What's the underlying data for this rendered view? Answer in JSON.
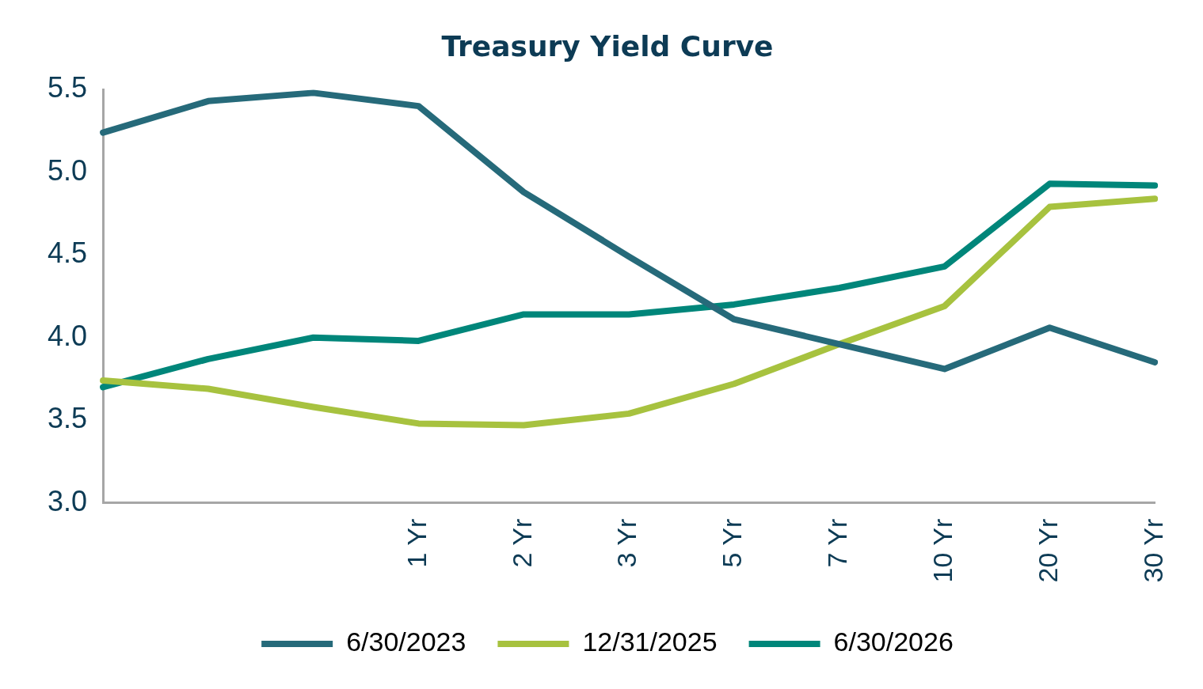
{
  "chart_data": {
    "type": "line",
    "title": "Treasury Yield Curve",
    "categories": [
      null,
      null,
      null,
      "1 Yr",
      "2 Yr",
      "3 Yr",
      "5 Yr",
      "7 Yr",
      "10 Yr",
      "20 Yr",
      "30 Yr"
    ],
    "series": [
      {
        "name": "6/30/2023",
        "color": "#266a7a",
        "values": [
          5.24,
          5.43,
          5.48,
          5.4,
          4.88,
          4.49,
          4.11,
          3.96,
          3.81,
          4.06,
          3.85
        ]
      },
      {
        "name": "12/31/2025",
        "color": "#a7c23f",
        "values": [
          3.74,
          3.69,
          3.58,
          3.48,
          3.47,
          3.54,
          3.72,
          3.96,
          4.19,
          4.79,
          4.84
        ]
      },
      {
        "name": "6/30/2026",
        "color": "#00867a",
        "values": [
          3.7,
          3.87,
          4.0,
          3.98,
          4.14,
          4.14,
          4.2,
          4.3,
          4.43,
          4.93,
          4.92
        ]
      }
    ],
    "ylim": [
      3.0,
      5.5
    ],
    "yticks": [
      {
        "value": 3,
        "label": "3.0"
      },
      {
        "value": 3.5,
        "label": "3.5"
      },
      {
        "value": 4,
        "label": "4.0"
      },
      {
        "value": 4.5,
        "label": "4.5"
      },
      {
        "value": 5,
        "label": "5.0"
      },
      {
        "value": 5.5,
        "label": "5.5"
      }
    ],
    "grid": false,
    "legend": "bottom",
    "marker": "none",
    "line_style": "solid"
  }
}
